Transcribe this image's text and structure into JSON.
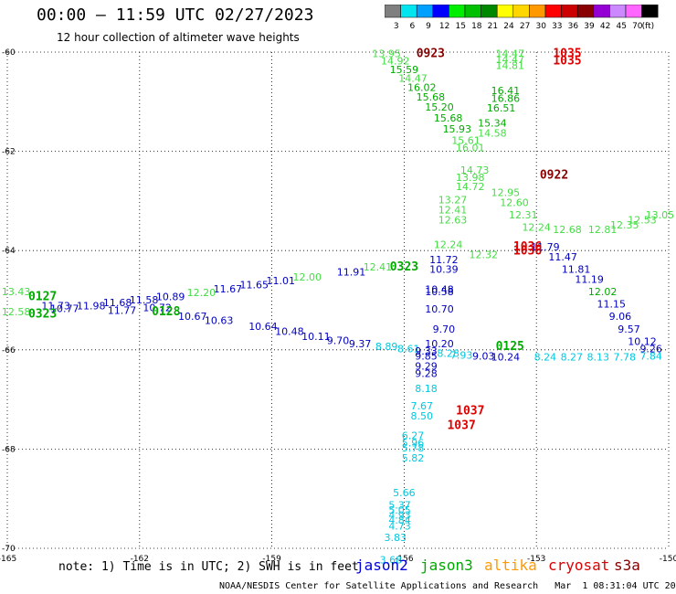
{
  "header": {
    "title": "00:00 – 11:59 UTC 02/27/2023",
    "subtitle": "12 hour collection of altimeter wave heights"
  },
  "colorbar": {
    "unit_label": "(ft)",
    "bins": [
      {
        "label": "3",
        "color": "#7f7f7f"
      },
      {
        "label": "6",
        "color": "#00e5ee"
      },
      {
        "label": "9",
        "color": "#00a0ff"
      },
      {
        "label": "12",
        "color": "#0000ff"
      },
      {
        "label": "15",
        "color": "#00ee00"
      },
      {
        "label": "18",
        "color": "#00c000"
      },
      {
        "label": "21",
        "color": "#008800"
      },
      {
        "label": "24",
        "color": "#ffff00"
      },
      {
        "label": "27",
        "color": "#ffd700"
      },
      {
        "label": "30",
        "color": "#ff9900"
      },
      {
        "label": "33",
        "color": "#ff0000"
      },
      {
        "label": "36",
        "color": "#cc0000"
      },
      {
        "label": "39",
        "color": "#880000"
      },
      {
        "label": "42",
        "color": "#9400d3"
      },
      {
        "label": "45",
        "color": "#cc88ff"
      },
      {
        "label": "70",
        "color": "#ff66ff"
      },
      {
        "label": "",
        "color": "#000000"
      }
    ]
  },
  "map": {
    "lon_range": [
      -165,
      -150
    ],
    "lat_range": [
      -70,
      -60
    ],
    "lon_ticks": [
      "-165",
      "-162",
      "-159",
      "-156",
      "-153",
      "-150"
    ],
    "lat_ticks": [
      "-60",
      "-62",
      "-64",
      "-66",
      "-68",
      "-70"
    ],
    "tick_lons": [
      -165,
      -162,
      -159,
      -156,
      -153,
      -150
    ],
    "tick_lats": [
      -60,
      -62,
      -64,
      -66,
      -68,
      -70
    ],
    "colors": {
      "jason2": "#0000dd",
      "jason3": "#00aa00",
      "jason3_light": "#44dd44",
      "altika": "#ff9900",
      "cryosat": "#dd0000",
      "s3a": "#880000",
      "cyan": "#00c8e0",
      "blue": "#0000c0"
    },
    "time_labels": [
      {
        "text": "0923",
        "lon": -155.4,
        "lat": -60.1,
        "color": "s3a"
      },
      {
        "text": "1035",
        "lon": -152.3,
        "lat": -60.1,
        "color": "cryosat"
      },
      {
        "text": "1035",
        "lon": -152.3,
        "lat": -60.25,
        "color": "cryosat"
      },
      {
        "text": "0922",
        "lon": -152.6,
        "lat": -62.55,
        "color": "s3a"
      },
      {
        "text": "1036",
        "lon": -153.2,
        "lat": -64.0,
        "color": "cryosat"
      },
      {
        "text": "1036",
        "lon": -153.2,
        "lat": -64.08,
        "color": "cryosat"
      },
      {
        "text": "0323",
        "lon": -156.0,
        "lat": -64.4,
        "color": "jason3"
      },
      {
        "text": "0127",
        "lon": -164.2,
        "lat": -65.0,
        "color": "jason3"
      },
      {
        "text": "0323",
        "lon": -164.2,
        "lat": -65.35,
        "color": "jason3"
      },
      {
        "text": "0128",
        "lon": -161.4,
        "lat": -65.3,
        "color": "jason3"
      },
      {
        "text": "0125",
        "lon": -153.6,
        "lat": -66.0,
        "color": "jason3"
      },
      {
        "text": "1037",
        "lon": -154.5,
        "lat": -67.3,
        "color": "cryosat"
      },
      {
        "text": "1037",
        "lon": -154.7,
        "lat": -67.6,
        "color": "cryosat"
      }
    ],
    "swh_labels": [
      {
        "text": "13.95",
        "lon": -156.4,
        "lat": -60.1,
        "color": "jason3_light"
      },
      {
        "text": "14.92",
        "lon": -156.2,
        "lat": -60.25,
        "color": "jason3_light"
      },
      {
        "text": "15.59",
        "lon": -156.0,
        "lat": -60.42,
        "color": "jason3"
      },
      {
        "text": "14.47",
        "lon": -155.8,
        "lat": -60.6,
        "color": "jason3_light"
      },
      {
        "text": "16.02",
        "lon": -155.6,
        "lat": -60.78,
        "color": "jason3"
      },
      {
        "text": "15.68",
        "lon": -155.4,
        "lat": -60.98,
        "color": "jason3"
      },
      {
        "text": "15.20",
        "lon": -155.2,
        "lat": -61.18,
        "color": "jason3"
      },
      {
        "text": "15.68",
        "lon": -155.0,
        "lat": -61.4,
        "color": "jason3"
      },
      {
        "text": "15.93",
        "lon": -154.8,
        "lat": -61.62,
        "color": "jason3"
      },
      {
        "text": "15.61",
        "lon": -154.6,
        "lat": -61.85,
        "color": "jason3_light"
      },
      {
        "text": "16.01",
        "lon": -154.5,
        "lat": -62.0,
        "color": "jason3_light"
      },
      {
        "text": "14.47",
        "lon": -153.6,
        "lat": -60.1,
        "color": "jason3_light"
      },
      {
        "text": "14.47",
        "lon": -153.6,
        "lat": -60.22,
        "color": "jason3_light"
      },
      {
        "text": "14.81",
        "lon": -153.6,
        "lat": -60.34,
        "color": "jason3_light"
      },
      {
        "text": "16.41",
        "lon": -153.7,
        "lat": -60.85,
        "color": "jason3"
      },
      {
        "text": "16.86",
        "lon": -153.7,
        "lat": -61.0,
        "color": "jason3"
      },
      {
        "text": "16.51",
        "lon": -153.8,
        "lat": -61.2,
        "color": "jason3"
      },
      {
        "text": "15.34",
        "lon": -154.0,
        "lat": -61.5,
        "color": "jason3"
      },
      {
        "text": "14.58",
        "lon": -154.0,
        "lat": -61.7,
        "color": "jason3_light"
      },
      {
        "text": "14.73",
        "lon": -154.4,
        "lat": -62.45,
        "color": "jason3_light"
      },
      {
        "text": "13.98",
        "lon": -154.5,
        "lat": -62.6,
        "color": "jason3_light"
      },
      {
        "text": "14.72",
        "lon": -154.5,
        "lat": -62.78,
        "color": "jason3_light"
      },
      {
        "text": "12.95",
        "lon": -153.7,
        "lat": -62.9,
        "color": "jason3_light"
      },
      {
        "text": "12.60",
        "lon": -153.5,
        "lat": -63.1,
        "color": "jason3_light"
      },
      {
        "text": "13.27",
        "lon": -154.9,
        "lat": -63.05,
        "color": "jason3_light"
      },
      {
        "text": "12.41",
        "lon": -154.9,
        "lat": -63.25,
        "color": "jason3_light"
      },
      {
        "text": "12.63",
        "lon": -154.9,
        "lat": -63.45,
        "color": "jason3_light"
      },
      {
        "text": "12.31",
        "lon": -153.3,
        "lat": -63.35,
        "color": "jason3_light"
      },
      {
        "text": "12.24",
        "lon": -153.0,
        "lat": -63.6,
        "color": "jason3_light"
      },
      {
        "text": "12.24",
        "lon": -155.0,
        "lat": -63.95,
        "color": "jason3_light"
      },
      {
        "text": "12.32",
        "lon": -154.2,
        "lat": -64.15,
        "color": "jason3_light"
      },
      {
        "text": "11.79",
        "lon": -152.8,
        "lat": -64.0,
        "color": "blue"
      },
      {
        "text": "11.72",
        "lon": -155.1,
        "lat": -64.25,
        "color": "blue"
      },
      {
        "text": "10.39",
        "lon": -155.1,
        "lat": -64.45,
        "color": "blue"
      },
      {
        "text": "11.47",
        "lon": -152.4,
        "lat": -64.2,
        "color": "blue"
      },
      {
        "text": "11.81",
        "lon": -152.1,
        "lat": -64.45,
        "color": "blue"
      },
      {
        "text": "11.19",
        "lon": -151.8,
        "lat": -64.65,
        "color": "blue"
      },
      {
        "text": "12.02",
        "lon": -151.5,
        "lat": -64.9,
        "color": "jason3"
      },
      {
        "text": "11.15",
        "lon": -151.3,
        "lat": -65.15,
        "color": "blue"
      },
      {
        "text": "10.48",
        "lon": -155.2,
        "lat": -64.85,
        "color": "blue"
      },
      {
        "text": "10.58",
        "lon": -155.2,
        "lat": -64.9,
        "color": "blue"
      },
      {
        "text": "10.70",
        "lon": -155.2,
        "lat": -65.25,
        "color": "blue"
      },
      {
        "text": "9.70",
        "lon": -155.1,
        "lat": -65.65,
        "color": "blue"
      },
      {
        "text": "10.20",
        "lon": -155.2,
        "lat": -65.95,
        "color": "blue"
      },
      {
        "text": "9.06",
        "lon": -151.1,
        "lat": -65.4,
        "color": "blue"
      },
      {
        "text": "9.57",
        "lon": -150.9,
        "lat": -65.65,
        "color": "blue"
      },
      {
        "text": "10.12",
        "lon": -150.6,
        "lat": -65.9,
        "color": "blue"
      },
      {
        "text": "9.26",
        "lon": -150.4,
        "lat": -66.05,
        "color": "blue"
      },
      {
        "text": "12.81",
        "lon": -151.5,
        "lat": -63.65,
        "color": "jason3_light"
      },
      {
        "text": "12.35",
        "lon": -151.0,
        "lat": -63.55,
        "color": "jason3_light"
      },
      {
        "text": "12.53",
        "lon": -150.6,
        "lat": -63.45,
        "color": "jason3_light"
      },
      {
        "text": "13.05",
        "lon": -150.2,
        "lat": -63.35,
        "color": "jason3_light"
      },
      {
        "text": "12.68",
        "lon": -152.3,
        "lat": -63.65,
        "color": "jason3_light"
      },
      {
        "text": "11.91",
        "lon": -157.2,
        "lat": -64.5,
        "color": "blue"
      },
      {
        "text": "12.41",
        "lon": -156.6,
        "lat": -64.4,
        "color": "jason3_light"
      },
      {
        "text": "12.00",
        "lon": -158.2,
        "lat": -64.6,
        "color": "jason3_light"
      },
      {
        "text": "11.01",
        "lon": -158.8,
        "lat": -64.68,
        "color": "blue"
      },
      {
        "text": "11.65",
        "lon": -159.4,
        "lat": -64.76,
        "color": "blue"
      },
      {
        "text": "11.67",
        "lon": -160.0,
        "lat": -64.84,
        "color": "blue"
      },
      {
        "text": "12.20",
        "lon": -160.6,
        "lat": -64.92,
        "color": "jason3_light"
      },
      {
        "text": "10.89",
        "lon": -161.3,
        "lat": -65.0,
        "color": "blue"
      },
      {
        "text": "11.58",
        "lon": -161.9,
        "lat": -65.06,
        "color": "blue"
      },
      {
        "text": "11.68",
        "lon": -162.5,
        "lat": -65.12,
        "color": "blue"
      },
      {
        "text": "11.98",
        "lon": -163.1,
        "lat": -65.18,
        "color": "blue"
      },
      {
        "text": "10.77",
        "lon": -163.7,
        "lat": -65.24,
        "color": "blue"
      },
      {
        "text": "10.72",
        "lon": -161.6,
        "lat": -65.22,
        "color": "blue"
      },
      {
        "text": "11.77",
        "lon": -162.4,
        "lat": -65.28,
        "color": "blue"
      },
      {
        "text": "10.67",
        "lon": -160.8,
        "lat": -65.4,
        "color": "blue"
      },
      {
        "text": "10.63",
        "lon": -160.2,
        "lat": -65.48,
        "color": "blue"
      },
      {
        "text": "10.64",
        "lon": -159.2,
        "lat": -65.6,
        "color": "blue"
      },
      {
        "text": "10.48",
        "lon": -158.6,
        "lat": -65.7,
        "color": "blue"
      },
      {
        "text": "10.11",
        "lon": -158.0,
        "lat": -65.8,
        "color": "blue"
      },
      {
        "text": "9.70",
        "lon": -157.5,
        "lat": -65.88,
        "color": "blue"
      },
      {
        "text": "9.37",
        "lon": -157.0,
        "lat": -65.95,
        "color": "blue"
      },
      {
        "text": "8.89",
        "lon": -156.4,
        "lat": -66.0,
        "color": "cyan"
      },
      {
        "text": "8.61",
        "lon": -155.9,
        "lat": -66.05,
        "color": "cyan"
      },
      {
        "text": "9.33",
        "lon": -155.5,
        "lat": -66.1,
        "color": "blue"
      },
      {
        "text": "8.28",
        "lon": -155.0,
        "lat": -66.14,
        "color": "cyan"
      },
      {
        "text": "7.93",
        "lon": -154.7,
        "lat": -66.18,
        "color": "cyan"
      },
      {
        "text": "9.03",
        "lon": -154.2,
        "lat": -66.2,
        "color": "blue"
      },
      {
        "text": "10.24",
        "lon": -153.7,
        "lat": -66.22,
        "color": "blue"
      },
      {
        "text": "8.24",
        "lon": -152.8,
        "lat": -66.22,
        "color": "cyan"
      },
      {
        "text": "8.27",
        "lon": -152.2,
        "lat": -66.22,
        "color": "cyan"
      },
      {
        "text": "8.13",
        "lon": -151.6,
        "lat": -66.22,
        "color": "cyan"
      },
      {
        "text": "7.78",
        "lon": -151.0,
        "lat": -66.22,
        "color": "cyan"
      },
      {
        "text": "7.84",
        "lon": -150.4,
        "lat": -66.2,
        "color": "cyan"
      },
      {
        "text": "13.43",
        "lon": -164.8,
        "lat": -64.9,
        "color": "jason3_light"
      },
      {
        "text": "12.58",
        "lon": -164.8,
        "lat": -65.3,
        "color": "jason3_light"
      },
      {
        "text": "11.73",
        "lon": -163.9,
        "lat": -65.18,
        "color": "blue"
      },
      {
        "text": "9.85",
        "lon": -155.5,
        "lat": -66.2,
        "color": "blue"
      },
      {
        "text": "9.29",
        "lon": -155.5,
        "lat": -66.4,
        "color": "blue"
      },
      {
        "text": "9.28",
        "lon": -155.5,
        "lat": -66.55,
        "color": "blue"
      },
      {
        "text": "8.18",
        "lon": -155.5,
        "lat": -66.85,
        "color": "cyan"
      },
      {
        "text": "7.67",
        "lon": -155.6,
        "lat": -67.2,
        "color": "cyan"
      },
      {
        "text": "8.50",
        "lon": -155.6,
        "lat": -67.4,
        "color": "cyan"
      },
      {
        "text": "6.27",
        "lon": -155.8,
        "lat": -67.8,
        "color": "cyan"
      },
      {
        "text": "5.96",
        "lon": -155.8,
        "lat": -67.95,
        "color": "cyan"
      },
      {
        "text": "5.78",
        "lon": -155.8,
        "lat": -68.05,
        "color": "cyan"
      },
      {
        "text": "5.82",
        "lon": -155.8,
        "lat": -68.25,
        "color": "cyan"
      },
      {
        "text": "5.66",
        "lon": -156.0,
        "lat": -68.95,
        "color": "cyan"
      },
      {
        "text": "5.37",
        "lon": -156.1,
        "lat": -69.2,
        "color": "cyan"
      },
      {
        "text": "5.05",
        "lon": -156.1,
        "lat": -69.3,
        "color": "cyan"
      },
      {
        "text": "4.93",
        "lon": -156.1,
        "lat": -69.4,
        "color": "cyan"
      },
      {
        "text": "4.84",
        "lon": -156.1,
        "lat": -69.5,
        "color": "cyan"
      },
      {
        "text": "4.73",
        "lon": -156.1,
        "lat": -69.62,
        "color": "cyan"
      },
      {
        "text": "3.83",
        "lon": -156.2,
        "lat": -69.85,
        "color": "cyan"
      },
      {
        "text": "3.68",
        "lon": -156.3,
        "lat": -70.3,
        "color": "cyan"
      }
    ]
  },
  "note": {
    "text": "note: 1) Time is in UTC; 2) SWH is in feet"
  },
  "satellites": {
    "jason2": "jason2",
    "jason3": "jason3",
    "altika": "altika",
    "cryosat": "cryosat",
    "s3a": "s3a"
  },
  "credit": {
    "text": "NOAA/NESDIS Center for Satellite Applications and Research   Mar  1 08:31:04 UTC 2023"
  }
}
